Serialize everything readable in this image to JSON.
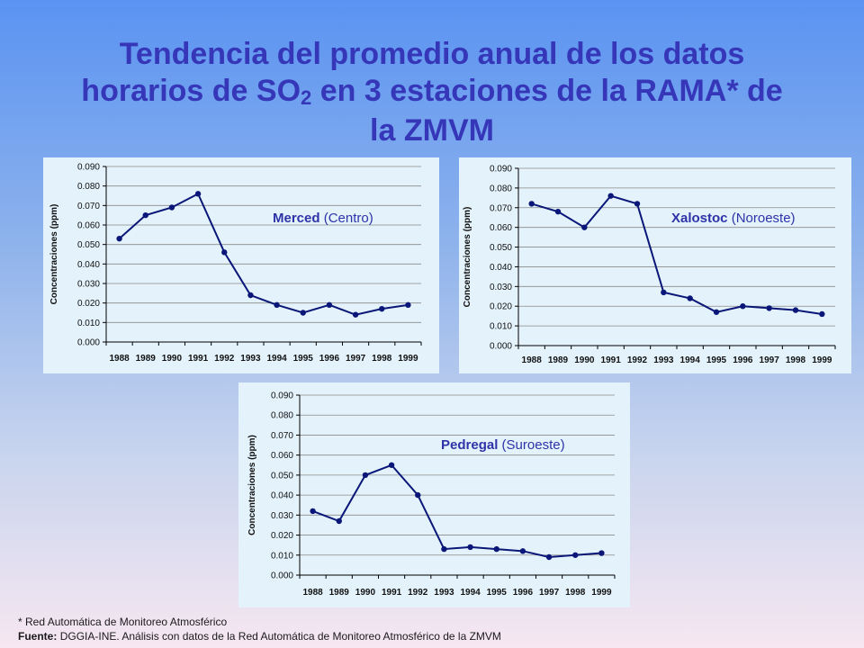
{
  "title": {
    "line1": "Tendencia del promedio anual de los datos",
    "line2_a": "horarios de SO",
    "line2_sub": "2",
    "line2_b": " en 3 estaciones de la RAMA* de",
    "line3": "la ZMVM"
  },
  "colors": {
    "line": "#0a1778",
    "label": "#2f33a8",
    "axis": "#000000",
    "grid": "#8a8a8a"
  },
  "chart_data": [
    {
      "type": "line",
      "station": "Merced",
      "region": "(Centro)",
      "ylabel": "Concentraciones  (ppm)",
      "ylim": [
        0,
        0.09
      ],
      "yticks": [
        "0.000",
        "0.010",
        "0.020",
        "0.030",
        "0.040",
        "0.050",
        "0.060",
        "0.070",
        "0.080",
        "0.090"
      ],
      "categories": [
        "1988",
        "1989",
        "1990",
        "1991",
        "1992",
        "1993",
        "1994",
        "1995",
        "1996",
        "1997",
        "1998",
        "1999"
      ],
      "values": [
        0.053,
        0.065,
        0.069,
        0.076,
        0.046,
        0.024,
        0.019,
        0.015,
        0.019,
        0.014,
        0.017,
        0.019
      ],
      "grid": true
    },
    {
      "type": "line",
      "station": "Xalostoc",
      "region": "(Noroeste)",
      "ylabel": "Concentraciones  (ppm)",
      "ylim": [
        0,
        0.09
      ],
      "yticks": [
        "0.000",
        "0.010",
        "0.020",
        "0.030",
        "0.040",
        "0.050",
        "0.060",
        "0.070",
        "0.080",
        "0.090"
      ],
      "categories": [
        "1988",
        "1989",
        "1990",
        "1991",
        "1992",
        "1993",
        "1994",
        "1995",
        "1996",
        "1997",
        "1998",
        "1999"
      ],
      "values": [
        0.072,
        0.068,
        0.06,
        0.076,
        0.072,
        0.027,
        0.024,
        0.017,
        0.02,
        0.019,
        0.018,
        0.016
      ],
      "grid": true
    },
    {
      "type": "line",
      "station": "Pedregal",
      "region": "(Suroeste)",
      "ylabel": "Concentraciones  (ppm)",
      "ylim": [
        0,
        0.09
      ],
      "yticks": [
        "0.000",
        "0.010",
        "0.020",
        "0.030",
        "0.040",
        "0.050",
        "0.060",
        "0.070",
        "0.080",
        "0.090"
      ],
      "categories": [
        "1988",
        "1989",
        "1990",
        "1991",
        "1992",
        "1993",
        "1994",
        "1995",
        "1996",
        "1997",
        "1998",
        "1999"
      ],
      "values": [
        0.032,
        0.027,
        0.05,
        0.055,
        0.04,
        0.013,
        0.014,
        0.013,
        0.012,
        0.009,
        0.01,
        0.011
      ],
      "grid": true
    }
  ],
  "footnote": "* Red Automática de Monitoreo Atmosférico",
  "source": {
    "label": "Fuente:",
    "text": "DGGIA-INE.  Análisis con datos de la Red Automática de Monitoreo Atmosférico de la ZMVM"
  }
}
